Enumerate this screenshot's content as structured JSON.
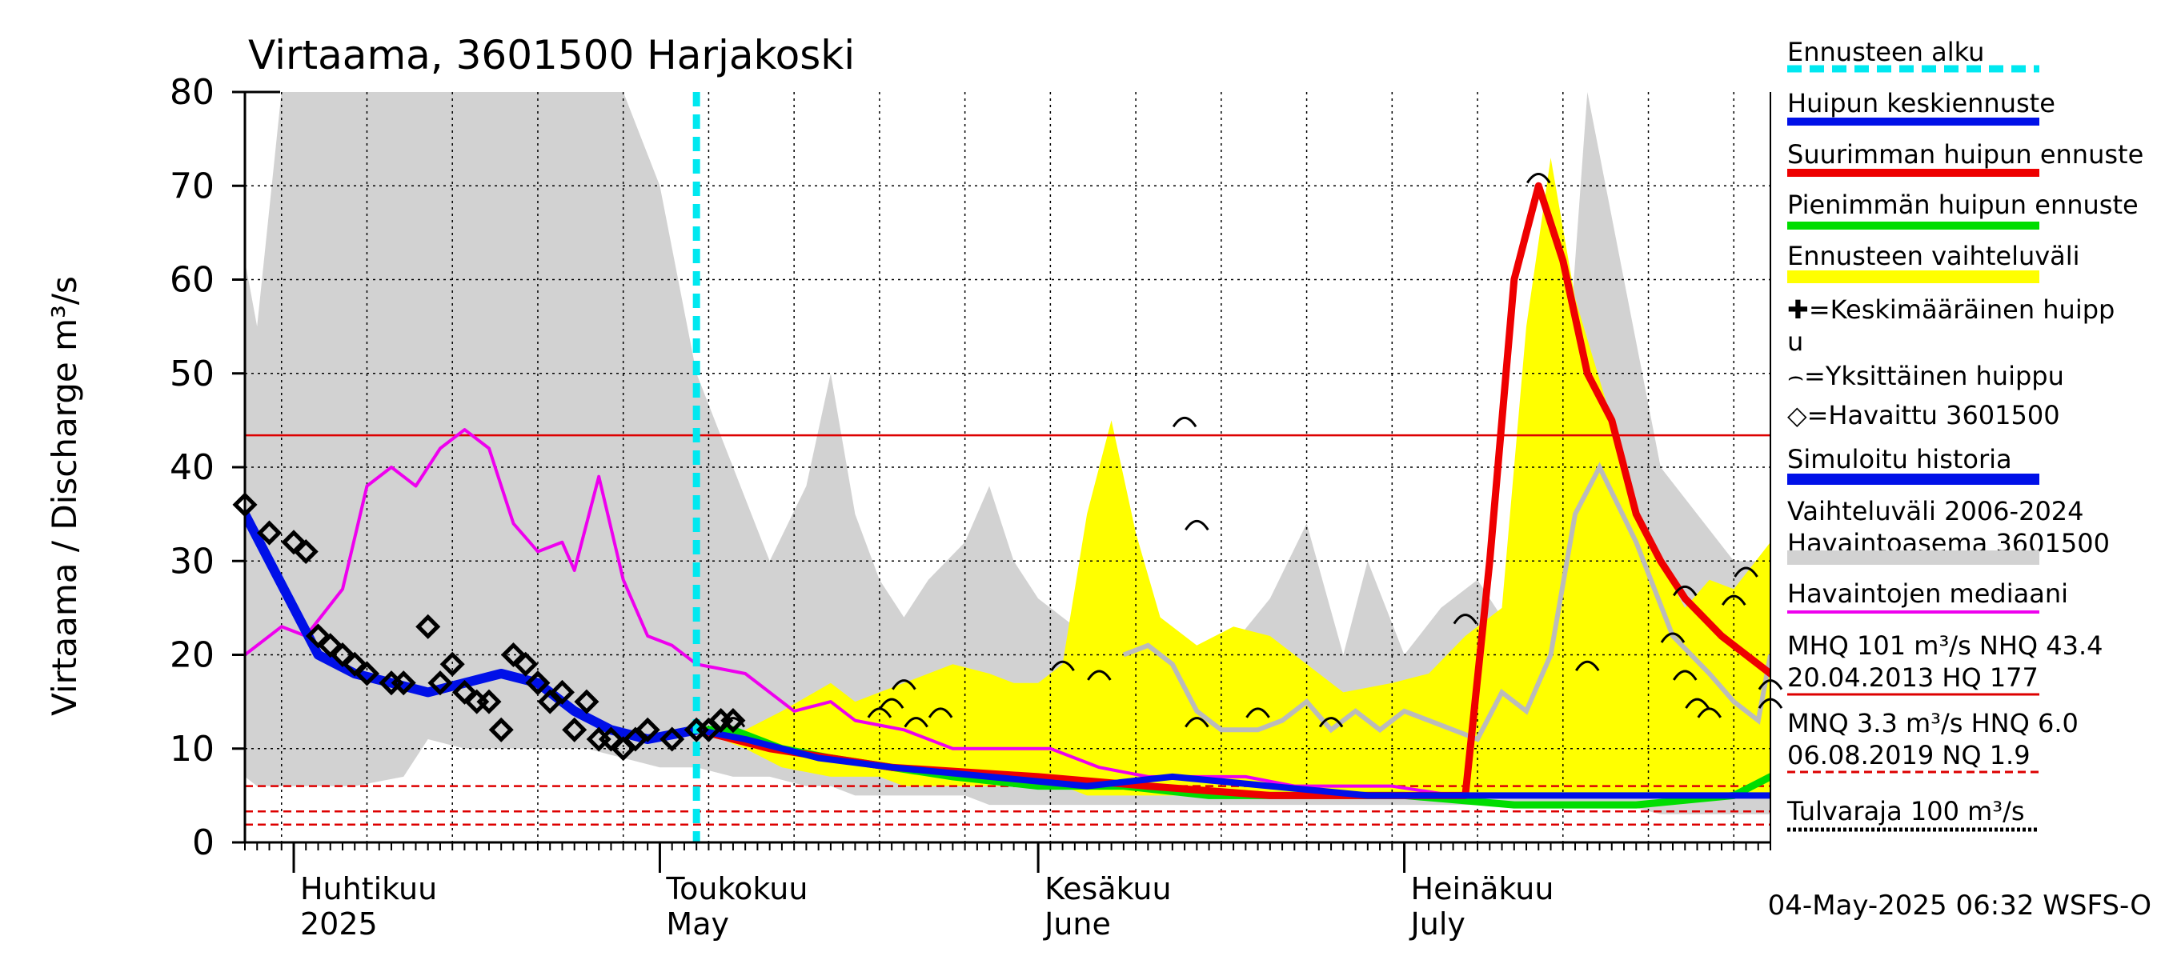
{
  "chart_data": {
    "type": "line",
    "title": "Virtaama, 3601500 Harjakoski",
    "ylabel": "Virtaama / Discharge    m³/s",
    "ylim": [
      0,
      80
    ],
    "yticks": [
      0,
      10,
      20,
      30,
      40,
      50,
      60,
      70,
      80
    ],
    "x_start": "2025-03-28",
    "x_end": "2025-07-31",
    "months": [
      {
        "date": "2025-04-01",
        "fi": "Huhtikuu",
        "en": "2025"
      },
      {
        "date": "2025-05-01",
        "fi": "Toukokuu",
        "en": "May"
      },
      {
        "date": "2025-06-01",
        "fi": "Kesäkuu",
        "en": "June"
      },
      {
        "date": "2025-07-01",
        "fi": "Heinäkuu",
        "en": "July"
      }
    ],
    "forecast_start": "2025-05-04",
    "colors": {
      "band_hist": "#d2d2d2",
      "band_fc": "#ffff00",
      "mean_fc": "#0010e8",
      "max_fc": "#ee0000",
      "min_fc": "#00dd00",
      "median": "#ee00ee",
      "forecast_line": "#00e8f0",
      "ref": "#dd0000",
      "peak_line": "#bbbbbb"
    },
    "hist_range": {
      "x": [
        "2025-03-28",
        "2025-03-29",
        "2025-03-31",
        "2025-04-03",
        "2025-04-06",
        "2025-04-10",
        "2025-04-12",
        "2025-04-15",
        "2025-04-20",
        "2025-04-25",
        "2025-04-28",
        "2025-05-01",
        "2025-05-04",
        "2025-05-07",
        "2025-05-10",
        "2025-05-13",
        "2025-05-15",
        "2025-05-17",
        "2025-05-19",
        "2025-05-21",
        "2025-05-23",
        "2025-05-26",
        "2025-05-28",
        "2025-05-30",
        "2025-06-01",
        "2025-06-03",
        "2025-06-05",
        "2025-06-08",
        "2025-06-10",
        "2025-06-12",
        "2025-06-15",
        "2025-06-20",
        "2025-06-23",
        "2025-06-26",
        "2025-06-28",
        "2025-07-01",
        "2025-07-04",
        "2025-07-07",
        "2025-07-09",
        "2025-07-11",
        "2025-07-13",
        "2025-07-16",
        "2025-07-19",
        "2025-07-22",
        "2025-07-25",
        "2025-07-28",
        "2025-07-31"
      ],
      "high": [
        62,
        55,
        80,
        80,
        80,
        80,
        80,
        80,
        80,
        80,
        80,
        70,
        50,
        40,
        30,
        38,
        50,
        35,
        28,
        24,
        28,
        32,
        38,
        30,
        26,
        24,
        22,
        20,
        22,
        20,
        18,
        26,
        34,
        20,
        30,
        20,
        25,
        28,
        24,
        35,
        26,
        80,
        60,
        40,
        35,
        30,
        30
      ],
      "low": [
        7,
        6,
        6,
        6,
        6,
        7,
        11,
        10,
        10,
        10,
        9,
        8,
        8,
        7,
        7,
        6,
        6,
        5,
        5,
        5,
        5,
        5,
        4,
        4,
        4,
        4,
        4,
        4,
        4,
        4,
        4,
        4,
        4,
        4,
        4,
        4,
        4,
        4,
        4,
        4,
        4,
        4,
        4,
        3,
        3,
        3,
        3
      ]
    },
    "fc_range": {
      "x": [
        "2025-05-04",
        "2025-05-08",
        "2025-05-11",
        "2025-05-15",
        "2025-05-17",
        "2025-05-19",
        "2025-05-21",
        "2025-05-23",
        "2025-05-25",
        "2025-05-28",
        "2025-05-30",
        "2025-06-01",
        "2025-06-03",
        "2025-06-05",
        "2025-06-07",
        "2025-06-09",
        "2025-06-11",
        "2025-06-14",
        "2025-06-17",
        "2025-06-20",
        "2025-06-23",
        "2025-06-26",
        "2025-06-30",
        "2025-07-03",
        "2025-07-06",
        "2025-07-09",
        "2025-07-11",
        "2025-07-13",
        "2025-07-15",
        "2025-07-18",
        "2025-07-21",
        "2025-07-24",
        "2025-07-26",
        "2025-07-28",
        "2025-07-31"
      ],
      "high": [
        12,
        12,
        14,
        17,
        15,
        16,
        17,
        18,
        19,
        18,
        17,
        17,
        19,
        35,
        45,
        33,
        24,
        21,
        23,
        22,
        19,
        16,
        17,
        18,
        22,
        25,
        55,
        73,
        58,
        45,
        32,
        25,
        28,
        27,
        32
      ],
      "low": [
        12,
        10,
        8,
        7,
        7,
        7,
        6,
        6,
        6,
        6,
        6,
        6,
        6,
        5,
        5,
        5,
        5,
        5,
        5,
        5,
        5,
        5,
        5,
        5,
        5,
        5,
        5,
        5,
        5,
        5,
        5,
        5,
        5,
        5,
        5
      ]
    },
    "peak_line": {
      "x": [
        "2025-06-08",
        "2025-06-10",
        "2025-06-12",
        "2025-06-14",
        "2025-06-16",
        "2025-06-19",
        "2025-06-21",
        "2025-06-23",
        "2025-06-25",
        "2025-06-27",
        "2025-06-29",
        "2025-07-01",
        "2025-07-03",
        "2025-07-05",
        "2025-07-07",
        "2025-07-09",
        "2025-07-11",
        "2025-07-13",
        "2025-07-15",
        "2025-07-17",
        "2025-07-20",
        "2025-07-23",
        "2025-07-26",
        "2025-07-28",
        "2025-07-30",
        "2025-07-31"
      ],
      "y": [
        20,
        21,
        19,
        14,
        12,
        12,
        13,
        15,
        12,
        14,
        12,
        14,
        13,
        12,
        11,
        16,
        14,
        20,
        35,
        40,
        32,
        22,
        18,
        15,
        13,
        20
      ]
    },
    "series": [
      {
        "name": "Havaintojen mediaani",
        "x": [
          "2025-03-28",
          "2025-03-31",
          "2025-04-02",
          "2025-04-05",
          "2025-04-07",
          "2025-04-09",
          "2025-04-11",
          "2025-04-13",
          "2025-04-15",
          "2025-04-17",
          "2025-04-19",
          "2025-04-21",
          "2025-04-23",
          "2025-04-24",
          "2025-04-26",
          "2025-04-28",
          "2025-04-30",
          "2025-05-02",
          "2025-05-04",
          "2025-05-08",
          "2025-05-12",
          "2025-05-15",
          "2025-05-17",
          "2025-05-21",
          "2025-05-25",
          "2025-05-29",
          "2025-06-02",
          "2025-06-06",
          "2025-06-10",
          "2025-06-14",
          "2025-06-18",
          "2025-06-22",
          "2025-06-26",
          "2025-06-30",
          "2025-07-05",
          "2025-07-10",
          "2025-07-15",
          "2025-07-20",
          "2025-07-25",
          "2025-07-31"
        ],
        "y": [
          20,
          23,
          22,
          27,
          38,
          40,
          38,
          42,
          44,
          42,
          34,
          31,
          32,
          29,
          39,
          28,
          22,
          21,
          19,
          18,
          14,
          15,
          13,
          12,
          10,
          10,
          10,
          8,
          7,
          7,
          7,
          6,
          6,
          6,
          5,
          5,
          5,
          5,
          5,
          5
        ]
      },
      {
        "name": "Simuloitu historia",
        "x": [
          "2025-03-28",
          "2025-03-30",
          "2025-04-01",
          "2025-04-03",
          "2025-04-06",
          "2025-04-09",
          "2025-04-12",
          "2025-04-15",
          "2025-04-18",
          "2025-04-21",
          "2025-04-24",
          "2025-04-27",
          "2025-04-30",
          "2025-05-02",
          "2025-05-04"
        ],
        "y": [
          35,
          30,
          25,
          20,
          18,
          17,
          16,
          17,
          18,
          17,
          14,
          12,
          11,
          11.5,
          12
        ]
      },
      {
        "name": "Pienimmän huipun ennuste",
        "x": [
          "2025-05-04",
          "2025-05-07",
          "2025-05-11",
          "2025-05-15",
          "2025-05-20",
          "2025-05-25",
          "2025-06-01",
          "2025-06-08",
          "2025-06-15",
          "2025-06-22",
          "2025-07-01",
          "2025-07-10",
          "2025-07-20",
          "2025-07-28",
          "2025-07-31"
        ],
        "y": [
          12,
          12,
          10,
          9,
          8,
          7,
          6,
          6,
          5,
          5,
          5,
          4,
          4,
          5,
          7
        ]
      },
      {
        "name": "Suurimman huipun ennuste",
        "x": [
          "2025-05-04",
          "2025-05-10",
          "2025-05-20",
          "2025-06-01",
          "2025-06-10",
          "2025-06-20",
          "2025-07-01",
          "2025-07-04",
          "2025-07-06",
          "2025-07-08",
          "2025-07-10",
          "2025-07-12",
          "2025-07-14",
          "2025-07-16",
          "2025-07-18",
          "2025-07-20",
          "2025-07-22",
          "2025-07-24",
          "2025-07-27",
          "2025-07-31"
        ],
        "y": [
          12,
          10,
          8,
          7,
          6,
          5,
          5,
          5,
          5,
          30,
          60,
          70,
          62,
          50,
          45,
          35,
          30,
          26,
          22,
          18
        ]
      },
      {
        "name": "Huipun keskiennuste",
        "x": [
          "2025-05-04",
          "2025-05-08",
          "2025-05-14",
          "2025-05-20",
          "2025-05-28",
          "2025-06-05",
          "2025-06-12",
          "2025-06-20",
          "2025-06-28",
          "2025-07-06",
          "2025-07-14",
          "2025-07-22",
          "2025-07-31"
        ],
        "y": [
          12,
          11,
          9,
          8,
          7,
          6,
          7,
          6,
          5,
          5,
          5,
          5,
          5
        ]
      }
    ],
    "observed": {
      "name": "Havaittu 3601500",
      "x": [
        "2025-03-28",
        "2025-03-30",
        "2025-04-01",
        "2025-04-02",
        "2025-04-03",
        "2025-04-04",
        "2025-04-05",
        "2025-04-06",
        "2025-04-07",
        "2025-04-09",
        "2025-04-10",
        "2025-04-12",
        "2025-04-13",
        "2025-04-14",
        "2025-04-15",
        "2025-04-16",
        "2025-04-17",
        "2025-04-18",
        "2025-04-19",
        "2025-04-20",
        "2025-04-21",
        "2025-04-22",
        "2025-04-23",
        "2025-04-24",
        "2025-04-25",
        "2025-04-26",
        "2025-04-27",
        "2025-04-28",
        "2025-04-29",
        "2025-04-30",
        "2025-05-02",
        "2025-05-04",
        "2025-05-05",
        "2025-05-06",
        "2025-05-07"
      ],
      "y": [
        36,
        33,
        32,
        31,
        22,
        21,
        20,
        19,
        18,
        17,
        17,
        23,
        17,
        19,
        16,
        15,
        15,
        12,
        20,
        19,
        17,
        15,
        16,
        12,
        15,
        11,
        11,
        10,
        11,
        12,
        11,
        12,
        12,
        13,
        13
      ]
    },
    "peaks": [
      {
        "x": "2025-05-07",
        "y": 13
      },
      {
        "x": "2025-05-19",
        "y": 14
      },
      {
        "x": "2025-05-20",
        "y": 15
      },
      {
        "x": "2025-05-21",
        "y": 17
      },
      {
        "x": "2025-05-22",
        "y": 13
      },
      {
        "x": "2025-05-24",
        "y": 14
      },
      {
        "x": "2025-06-03",
        "y": 19
      },
      {
        "x": "2025-06-06",
        "y": 18
      },
      {
        "x": "2025-06-13",
        "y": 45
      },
      {
        "x": "2025-06-14",
        "y": 34
      },
      {
        "x": "2025-06-14",
        "y": 13
      },
      {
        "x": "2025-06-19",
        "y": 14
      },
      {
        "x": "2025-06-25",
        "y": 13
      },
      {
        "x": "2025-07-06",
        "y": 24
      },
      {
        "x": "2025-07-12",
        "y": 71
      },
      {
        "x": "2025-07-16",
        "y": 19
      },
      {
        "x": "2025-07-23",
        "y": 22
      },
      {
        "x": "2025-07-24",
        "y": 27
      },
      {
        "x": "2025-07-24",
        "y": 18
      },
      {
        "x": "2025-07-25",
        "y": 15
      },
      {
        "x": "2025-07-26",
        "y": 14
      },
      {
        "x": "2025-07-28",
        "y": 26
      },
      {
        "x": "2025-07-29",
        "y": 29
      },
      {
        "x": "2025-07-31",
        "y": 17
      },
      {
        "x": "2025-07-31",
        "y": 15
      }
    ],
    "reference_lines": [
      {
        "y": 43.4,
        "style": "solid"
      },
      {
        "y": 6.0,
        "style": "dashed"
      },
      {
        "y": 3.3,
        "style": "dashed"
      },
      {
        "y": 1.9,
        "style": "dashed"
      }
    ],
    "legend": {
      "position": "right",
      "items": [
        {
          "label": "Ennusteen alku",
          "kind": "forecast-start"
        },
        {
          "label": "Huipun keskiennuste",
          "kind": "mean"
        },
        {
          "label": "Suurimman huipun ennuste",
          "kind": "max"
        },
        {
          "label": "Pienimmän huipun ennuste",
          "kind": "min"
        },
        {
          "label": "Ennusteen vaihteluväli",
          "kind": "fc-band"
        },
        {
          "label": "✚=Keskimääräinen huipp",
          "label2": "u",
          "kind": "text"
        },
        {
          "label": "⌢=Yksittäinen huippu",
          "kind": "text"
        },
        {
          "label": "◇=Havaittu 3601500",
          "kind": "text"
        },
        {
          "label": "Simuloitu historia",
          "kind": "sim"
        },
        {
          "label": "Vaihteluväli 2006-2024",
          "label2": " Havaintoasema 3601500",
          "kind": "hist-band"
        },
        {
          "label": "Havaintojen mediaani",
          "kind": "median"
        },
        {
          "label": "MHQ  101 m³/s NHQ 43.4",
          "label2": "20.04.2013 HQ  177",
          "kind": "ref-solid"
        },
        {
          "label": "MNQ  3.3 m³/s HNQ  6.0",
          "label2": "06.08.2019 NQ  1.9",
          "kind": "ref-dashed"
        },
        {
          "label": "Tulvaraja 100 m³/s",
          "kind": "flood"
        }
      ]
    },
    "footer": "04-May-2025 06:32 WSFS-O"
  }
}
